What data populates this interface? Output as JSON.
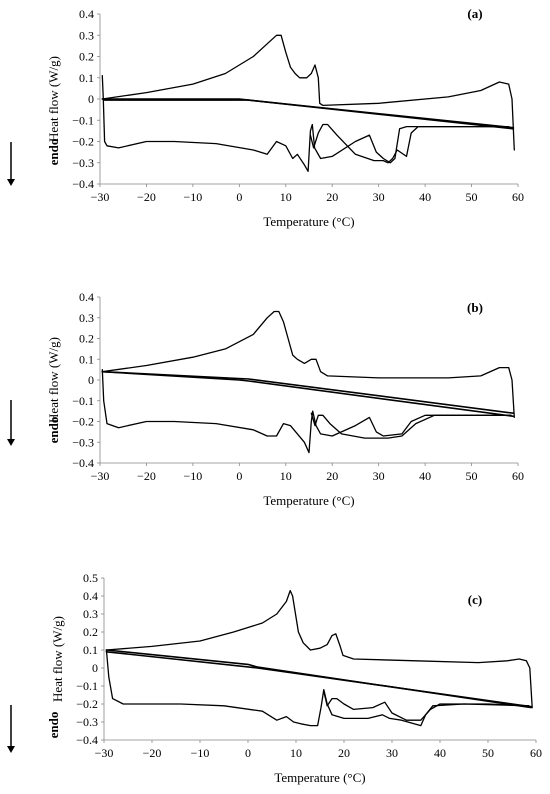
{
  "chart_data": [
    {
      "type": "line",
      "panel_label": "(a)",
      "xlabel": "Temperature (°C)",
      "ylabel": "Heat flow (W/g)",
      "endo_label": "endo",
      "xlim": [
        -30,
        60
      ],
      "ylim": [
        -0.4,
        0.4
      ],
      "xticks": [
        "−30",
        "−20",
        "−10",
        "0",
        "10",
        "20",
        "30",
        "40",
        "50",
        "60"
      ],
      "yticks": [
        "0.4",
        "0.3",
        "0.2",
        "0.1",
        "0",
        "−0.1",
        "−0.2",
        "−0.3",
        "−0.4"
      ],
      "grid": false,
      "series": [
        {
          "values": [
            [
              -29.5,
              0.11
            ],
            [
              -29.3,
              0
            ],
            [
              -29.0,
              -0.2
            ],
            [
              -28.5,
              -0.22
            ],
            [
              -26,
              -0.23
            ],
            [
              -20,
              -0.2
            ],
            [
              -14,
              -0.2
            ],
            [
              -5,
              -0.21
            ],
            [
              3,
              -0.24
            ],
            [
              6,
              -0.26
            ],
            [
              8,
              -0.2
            ],
            [
              10,
              -0.22
            ],
            [
              11.5,
              -0.28
            ],
            [
              12.5,
              -0.26
            ],
            [
              14,
              -0.31
            ],
            [
              14.8,
              -0.34
            ],
            [
              15.3,
              -0.15
            ],
            [
              15.7,
              -0.12
            ],
            [
              16.2,
              -0.23
            ],
            [
              17.5,
              -0.28
            ],
            [
              20,
              -0.27
            ],
            [
              25,
              -0.2
            ],
            [
              28,
              -0.17
            ],
            [
              29.5,
              -0.25
            ],
            [
              31,
              -0.28
            ],
            [
              32.5,
              -0.3
            ],
            [
              33.5,
              -0.28
            ],
            [
              34.5,
              -0.14
            ],
            [
              36,
              -0.13
            ],
            [
              45,
              -0.13
            ],
            [
              55,
              -0.13
            ],
            [
              58,
              -0.13
            ]
          ]
        },
        {
          "values": [
            [
              15.3,
              -0.17
            ],
            [
              16,
              -0.23
            ],
            [
              17,
              -0.16
            ],
            [
              18,
              -0.12
            ],
            [
              19,
              -0.12
            ],
            [
              21,
              -0.17
            ],
            [
              25,
              -0.26
            ],
            [
              29,
              -0.29
            ],
            [
              31,
              -0.29
            ],
            [
              32,
              -0.3
            ],
            [
              33,
              -0.28
            ],
            [
              34,
              -0.24
            ],
            [
              36,
              -0.27
            ],
            [
              37,
              -0.16
            ],
            [
              38.5,
              -0.13
            ],
            [
              45,
              -0.13
            ],
            [
              55,
              -0.13
            ],
            [
              58,
              -0.13
            ]
          ]
        },
        {
          "values": [
            [
              -29.5,
              0
            ],
            [
              -20,
              0.03
            ],
            [
              -10,
              0.07
            ],
            [
              -3,
              0.12
            ],
            [
              3,
              0.2
            ],
            [
              6,
              0.26
            ],
            [
              8,
              0.3
            ],
            [
              9,
              0.3
            ],
            [
              10,
              0.22
            ],
            [
              11,
              0.15
            ],
            [
              12,
              0.12
            ],
            [
              13,
              0.1
            ],
            [
              14.5,
              0.1
            ],
            [
              15.5,
              0.12
            ],
            [
              16.3,
              0.16
            ],
            [
              17,
              0.1
            ],
            [
              17.3,
              -0.02
            ],
            [
              18,
              -0.03
            ],
            [
              30,
              -0.02
            ],
            [
              45,
              0.01
            ],
            [
              52,
              0.04
            ],
            [
              56,
              0.08
            ],
            [
              58,
              0.07
            ],
            [
              58.7,
              0
            ],
            [
              59.2,
              -0.24
            ]
          ]
        },
        {
          "values": [
            [
              -29.5,
              0
            ],
            [
              0,
              0
            ],
            [
              2,
              -0.005
            ],
            [
              59,
              -0.14
            ]
          ]
        },
        {
          "values": [
            [
              -29,
              -0.005
            ],
            [
              2,
              -0.005
            ],
            [
              59,
              -0.135
            ]
          ]
        }
      ]
    },
    {
      "type": "line",
      "panel_label": "(b)",
      "xlabel": "Temperature (°C)",
      "ylabel": "Heat flow (W/g)",
      "endo_label": "endo",
      "xlim": [
        -30,
        60
      ],
      "ylim": [
        -0.4,
        0.4
      ],
      "xticks": [
        "−30",
        "−20",
        "−10",
        "0",
        "10",
        "20",
        "30",
        "40",
        "50",
        "60"
      ],
      "yticks": [
        "0.4",
        "0.3",
        "0.2",
        "0.1",
        "0",
        "−0.1",
        "−0.2",
        "−0.3",
        "−0.4"
      ],
      "grid": false,
      "series": [
        {
          "values": [
            [
              -29.5,
              0.05
            ],
            [
              -29.2,
              -0.1
            ],
            [
              -28.5,
              -0.21
            ],
            [
              -26,
              -0.23
            ],
            [
              -20,
              -0.2
            ],
            [
              -14,
              -0.2
            ],
            [
              -5,
              -0.21
            ],
            [
              3,
              -0.24
            ],
            [
              6,
              -0.27
            ],
            [
              8,
              -0.27
            ],
            [
              9.5,
              -0.21
            ],
            [
              11,
              -0.22
            ],
            [
              12.5,
              -0.26
            ],
            [
              14,
              -0.3
            ],
            [
              15,
              -0.35
            ],
            [
              15.5,
              -0.2
            ],
            [
              15.8,
              -0.15
            ],
            [
              16.5,
              -0.22
            ],
            [
              17.5,
              -0.26
            ],
            [
              20,
              -0.27
            ],
            [
              25,
              -0.22
            ],
            [
              28,
              -0.18
            ],
            [
              29.5,
              -0.25
            ],
            [
              31,
              -0.27
            ],
            [
              35,
              -0.26
            ],
            [
              37,
              -0.2
            ],
            [
              40,
              -0.17
            ],
            [
              50,
              -0.17
            ],
            [
              58.5,
              -0.17
            ]
          ]
        },
        {
          "values": [
            [
              15.5,
              -0.16
            ],
            [
              16.3,
              -0.22
            ],
            [
              17,
              -0.17
            ],
            [
              18,
              -0.17
            ],
            [
              19.5,
              -0.21
            ],
            [
              22,
              -0.26
            ],
            [
              27,
              -0.28
            ],
            [
              32,
              -0.28
            ],
            [
              35,
              -0.27
            ],
            [
              38,
              -0.21
            ],
            [
              42,
              -0.17
            ],
            [
              50,
              -0.17
            ],
            [
              58.5,
              -0.17
            ]
          ]
        },
        {
          "values": [
            [
              -29.5,
              0.04
            ],
            [
              -20,
              0.07
            ],
            [
              -10,
              0.11
            ],
            [
              -3,
              0.15
            ],
            [
              3,
              0.22
            ],
            [
              6,
              0.3
            ],
            [
              7.5,
              0.33
            ],
            [
              8.5,
              0.33
            ],
            [
              9.5,
              0.28
            ],
            [
              10.5,
              0.2
            ],
            [
              11.5,
              0.12
            ],
            [
              12.5,
              0.1
            ],
            [
              14,
              0.08
            ],
            [
              15.5,
              0.1
            ],
            [
              16.5,
              0.1
            ],
            [
              17.5,
              0.04
            ],
            [
              19,
              0.02
            ],
            [
              30,
              0.01
            ],
            [
              45,
              0.01
            ],
            [
              52,
              0.02
            ],
            [
              56,
              0.06
            ],
            [
              58,
              0.06
            ],
            [
              58.7,
              0
            ],
            [
              59.2,
              -0.18
            ]
          ]
        },
        {
          "values": [
            [
              -29.5,
              0.04
            ],
            [
              0,
              0
            ],
            [
              2,
              -0.005
            ],
            [
              59,
              -0.175
            ]
          ]
        },
        {
          "values": [
            [
              -29.5,
              0.04
            ],
            [
              2,
              0.005
            ],
            [
              59,
              -0.16
            ]
          ]
        }
      ]
    },
    {
      "type": "line",
      "panel_label": "(c)",
      "xlabel": "Temperature (°C)",
      "ylabel": "Heat flow (W/g)",
      "endo_label": "endo",
      "xlim": [
        -30,
        60
      ],
      "ylim": [
        -0.4,
        0.5
      ],
      "xticks": [
        "−30",
        "−20",
        "−10",
        "0",
        "10",
        "20",
        "30",
        "40",
        "50",
        "60"
      ],
      "yticks": [
        "0.5",
        "0.4",
        "0.3",
        "0.2",
        "0.1",
        "0",
        "−0.1",
        "−0.2",
        "−0.3",
        "−0.4"
      ],
      "grid": false,
      "series": [
        {
          "values": [
            [
              -29.5,
              0.1
            ],
            [
              -29,
              -0.05
            ],
            [
              -28.2,
              -0.17
            ],
            [
              -26,
              -0.2
            ],
            [
              -20,
              -0.2
            ],
            [
              -14,
              -0.2
            ],
            [
              -5,
              -0.21
            ],
            [
              3,
              -0.24
            ],
            [
              6,
              -0.29
            ],
            [
              8,
              -0.27
            ],
            [
              9.5,
              -0.3
            ],
            [
              11,
              -0.31
            ],
            [
              13,
              -0.32
            ],
            [
              14.5,
              -0.32
            ],
            [
              15.2,
              -0.22
            ],
            [
              15.8,
              -0.12
            ],
            [
              16.5,
              -0.2
            ],
            [
              17.5,
              -0.26
            ],
            [
              20,
              -0.28
            ],
            [
              25,
              -0.28
            ],
            [
              28,
              -0.26
            ],
            [
              29.5,
              -0.28
            ],
            [
              32,
              -0.29
            ],
            [
              36,
              -0.32
            ],
            [
              37,
              -0.26
            ],
            [
              38.5,
              -0.21
            ],
            [
              45,
              -0.2
            ],
            [
              58.5,
              -0.21
            ]
          ]
        },
        {
          "values": [
            [
              15.8,
              -0.13
            ],
            [
              16.5,
              -0.21
            ],
            [
              17.5,
              -0.17
            ],
            [
              18.5,
              -0.17
            ],
            [
              20,
              -0.2
            ],
            [
              22,
              -0.23
            ],
            [
              26,
              -0.22
            ],
            [
              28.5,
              -0.19
            ],
            [
              30,
              -0.25
            ],
            [
              33,
              -0.29
            ],
            [
              36,
              -0.29
            ],
            [
              38,
              -0.23
            ],
            [
              40,
              -0.2
            ],
            [
              50,
              -0.2
            ],
            [
              58.5,
              -0.21
            ]
          ]
        },
        {
          "values": [
            [
              -29.5,
              0.1
            ],
            [
              -20,
              0.12
            ],
            [
              -10,
              0.15
            ],
            [
              -3,
              0.2
            ],
            [
              3,
              0.25
            ],
            [
              6,
              0.3
            ],
            [
              8,
              0.37
            ],
            [
              8.8,
              0.43
            ],
            [
              9.3,
              0.4
            ],
            [
              10.5,
              0.2
            ],
            [
              11.5,
              0.14
            ],
            [
              13,
              0.1
            ],
            [
              15,
              0.11
            ],
            [
              16.5,
              0.13
            ],
            [
              17.5,
              0.18
            ],
            [
              18.3,
              0.19
            ],
            [
              19.2,
              0.12
            ],
            [
              19.8,
              0.07
            ],
            [
              22,
              0.05
            ],
            [
              35,
              0.04
            ],
            [
              48,
              0.03
            ],
            [
              54,
              0.04
            ],
            [
              56.5,
              0.05
            ],
            [
              58,
              0.04
            ],
            [
              58.7,
              0
            ],
            [
              59.2,
              -0.22
            ]
          ]
        },
        {
          "values": [
            [
              -29.5,
              0.1
            ],
            [
              0,
              0.02
            ],
            [
              2,
              0.005
            ],
            [
              59,
              -0.22
            ]
          ]
        },
        {
          "values": [
            [
              -29.5,
              0.09
            ],
            [
              2,
              0
            ],
            [
              59,
              -0.215
            ]
          ]
        }
      ]
    }
  ]
}
